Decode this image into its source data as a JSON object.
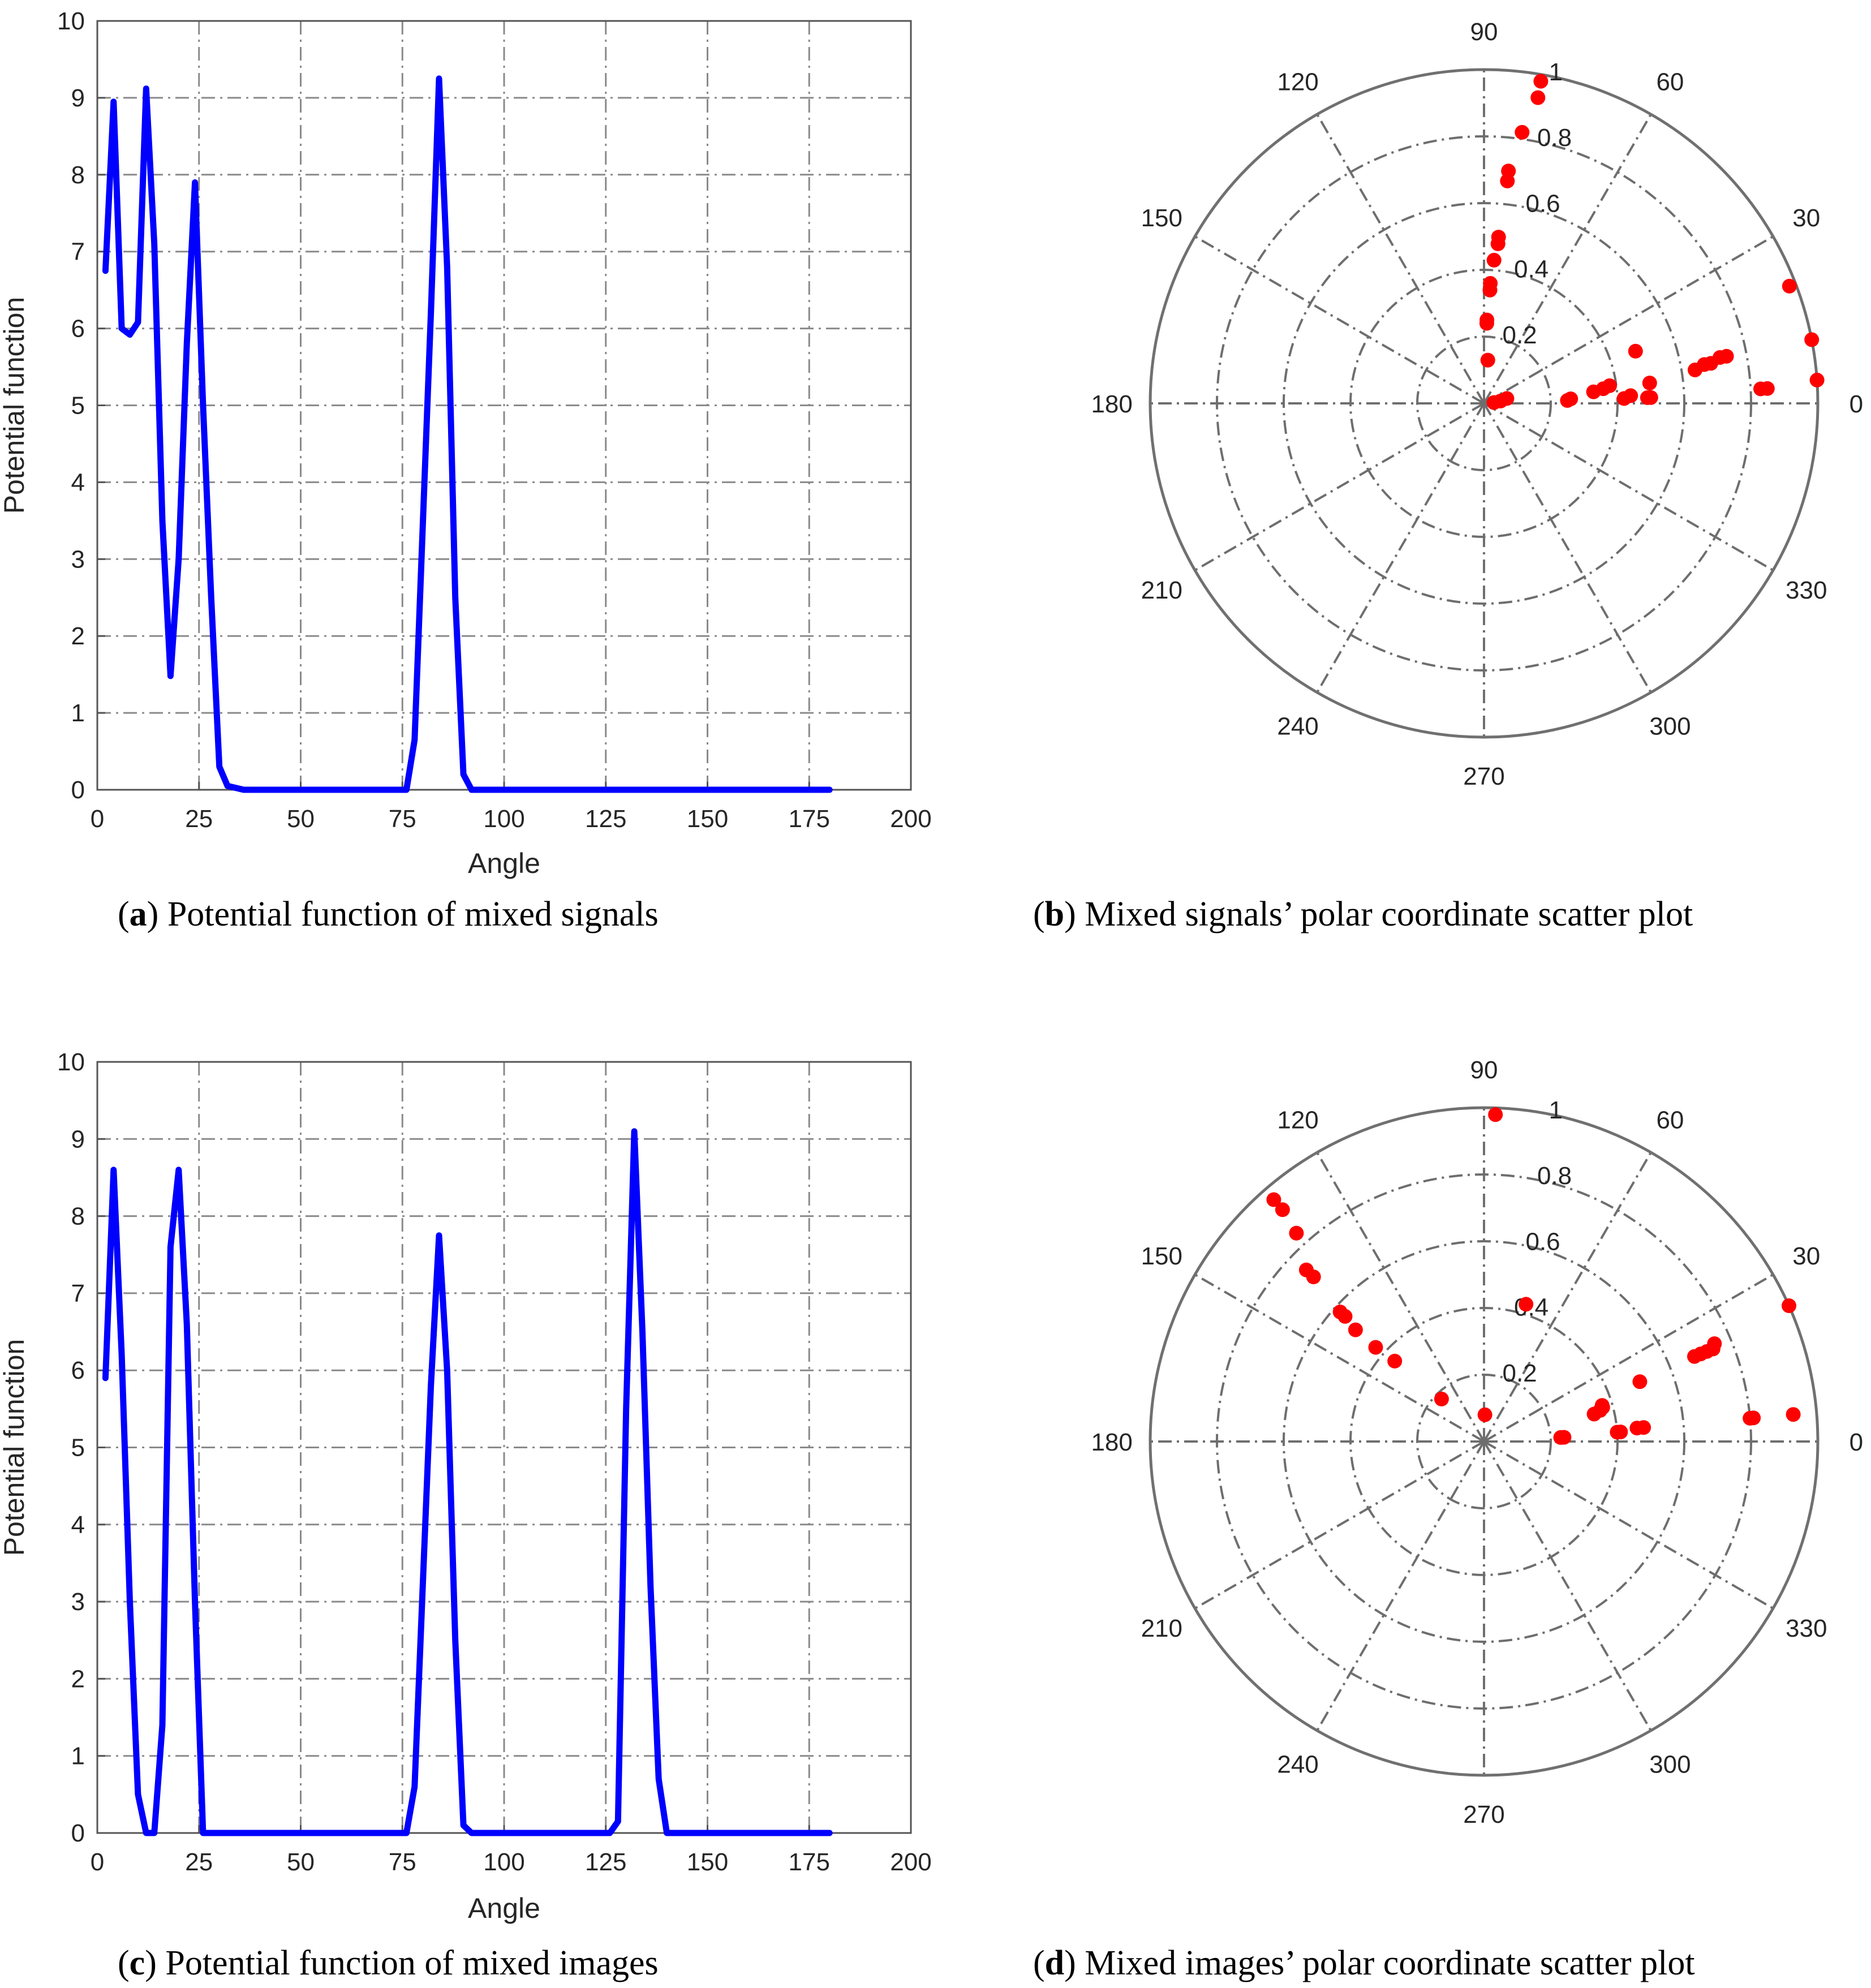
{
  "chart_data": [
    {
      "type": "line",
      "caption_id": "(a)",
      "caption_text": " Potential function of mixed signals",
      "xlabel": "Angle",
      "ylabel": "Potential function",
      "xlim": [
        0,
        200
      ],
      "ylim": [
        0,
        10
      ],
      "xticks": [
        0,
        25,
        50,
        75,
        100,
        125,
        150,
        175,
        200
      ],
      "yticks": [
        0,
        1,
        2,
        3,
        4,
        5,
        6,
        7,
        8,
        9,
        10
      ],
      "grid": true,
      "line_color": "#0000ff",
      "series": [
        {
          "name": "potential",
          "x": [
            2,
            4,
            6,
            8,
            10,
            12,
            14,
            16,
            18,
            20,
            22,
            24,
            26,
            28,
            30,
            32,
            36,
            76,
            78,
            82,
            84,
            86,
            88,
            90,
            92,
            180
          ],
          "y": [
            6.75,
            8.95,
            6.0,
            5.92,
            6.08,
            9.12,
            7.1,
            3.5,
            1.48,
            3.0,
            5.8,
            7.9,
            5.0,
            2.5,
            0.3,
            0.05,
            0.0,
            0.0,
            0.65,
            6.2,
            9.25,
            6.8,
            2.5,
            0.2,
            0.0,
            0.0
          ]
        }
      ]
    },
    {
      "type": "scatter",
      "subtype": "polar",
      "caption_id": "(b)",
      "caption_text": " Mixed signals’ polar coordinate scatter plot",
      "theta_ticks": [
        0,
        30,
        60,
        90,
        120,
        150,
        180,
        210,
        240,
        270,
        300,
        330
      ],
      "r_ticks": [
        0.2,
        0.4,
        0.6,
        0.8,
        1
      ],
      "rlim": [
        0,
        1
      ],
      "marker_color": "#ff0000",
      "points": [
        {
          "theta": 80,
          "r": 0.98
        },
        {
          "theta": 80,
          "r": 0.93
        },
        {
          "theta": 82,
          "r": 0.82
        },
        {
          "theta": 84,
          "r": 0.7
        },
        {
          "theta": 84,
          "r": 0.67
        },
        {
          "theta": 85,
          "r": 0.5
        },
        {
          "theta": 85,
          "r": 0.48
        },
        {
          "theta": 86,
          "r": 0.43
        },
        {
          "theta": 87,
          "r": 0.36
        },
        {
          "theta": 87,
          "r": 0.34
        },
        {
          "theta": 88,
          "r": 0.25
        },
        {
          "theta": 88,
          "r": 0.24
        },
        {
          "theta": 85,
          "r": 0.13
        },
        {
          "theta": 5,
          "r": 0.03
        },
        {
          "theta": 8,
          "r": 0.05
        },
        {
          "theta": 12,
          "r": 0.07
        },
        {
          "theta": 2,
          "r": 0.25
        },
        {
          "theta": 3,
          "r": 0.26
        },
        {
          "theta": 6,
          "r": 0.33
        },
        {
          "theta": 7,
          "r": 0.36
        },
        {
          "theta": 8,
          "r": 0.38
        },
        {
          "theta": 2,
          "r": 0.42
        },
        {
          "theta": 3,
          "r": 0.44
        },
        {
          "theta": 2,
          "r": 0.49
        },
        {
          "theta": 2,
          "r": 0.5
        },
        {
          "theta": 7,
          "r": 0.5
        },
        {
          "theta": 19,
          "r": 0.48
        },
        {
          "theta": 3,
          "r": 0.83
        },
        {
          "theta": 3,
          "r": 0.85
        },
        {
          "theta": 9,
          "r": 0.64
        },
        {
          "theta": 10,
          "r": 0.67
        },
        {
          "theta": 10,
          "r": 0.69
        },
        {
          "theta": 11,
          "r": 0.72
        },
        {
          "theta": 11,
          "r": 0.74
        },
        {
          "theta": 4,
          "r": 1.0
        },
        {
          "theta": 11,
          "r": 1.0
        },
        {
          "theta": 21,
          "r": 0.98
        }
      ]
    },
    {
      "type": "line",
      "caption_id": "(c)",
      "caption_text": " Potential function of mixed images",
      "xlabel": "Angle",
      "ylabel": "Potential function",
      "xlim": [
        0,
        200
      ],
      "ylim": [
        0,
        10
      ],
      "xticks": [
        0,
        25,
        50,
        75,
        100,
        125,
        150,
        175,
        200
      ],
      "yticks": [
        0,
        1,
        2,
        3,
        4,
        5,
        6,
        7,
        8,
        9,
        10
      ],
      "grid": true,
      "line_color": "#0000ff",
      "series": [
        {
          "name": "potential",
          "x": [
            2,
            4,
            6,
            8,
            10,
            12,
            14,
            16,
            18,
            20,
            22,
            24,
            26,
            28,
            76,
            78,
            82,
            84,
            86,
            88,
            90,
            92,
            126,
            128,
            130,
            132,
            134,
            136,
            138,
            140,
            180
          ],
          "y": [
            5.9,
            8.6,
            6.2,
            3.0,
            0.5,
            0.0,
            0.0,
            1.4,
            7.6,
            8.6,
            6.6,
            3.0,
            0.0,
            0.0,
            0.0,
            0.6,
            5.8,
            7.75,
            6.0,
            2.5,
            0.1,
            0.0,
            0.0,
            0.15,
            5.5,
            9.1,
            6.5,
            3.2,
            0.7,
            0.0,
            0.0
          ]
        }
      ]
    },
    {
      "type": "scatter",
      "subtype": "polar",
      "caption_id": "(d)",
      "caption_text": " Mixed images’ polar coordinate scatter plot",
      "theta_ticks": [
        0,
        30,
        60,
        90,
        120,
        150,
        180,
        210,
        240,
        270,
        300,
        330
      ],
      "r_ticks": [
        0.2,
        0.4,
        0.6,
        0.8,
        1
      ],
      "rlim": [
        0,
        1
      ],
      "marker_color": "#ff0000",
      "points": [
        {
          "theta": 88,
          "r": 0.98
        },
        {
          "theta": 131,
          "r": 0.96
        },
        {
          "theta": 131,
          "r": 0.92
        },
        {
          "theta": 132,
          "r": 0.84
        },
        {
          "theta": 136,
          "r": 0.74
        },
        {
          "theta": 136,
          "r": 0.71
        },
        {
          "theta": 138,
          "r": 0.58
        },
        {
          "theta": 138,
          "r": 0.56
        },
        {
          "theta": 139,
          "r": 0.51
        },
        {
          "theta": 139,
          "r": 0.43
        },
        {
          "theta": 138,
          "r": 0.36
        },
        {
          "theta": 135,
          "r": 0.18
        },
        {
          "theta": 88,
          "r": 0.08
        },
        {
          "theta": 73,
          "r": 0.43
        },
        {
          "theta": 3,
          "r": 0.23
        },
        {
          "theta": 3,
          "r": 0.24
        },
        {
          "theta": 14,
          "r": 0.34
        },
        {
          "theta": 15,
          "r": 0.36
        },
        {
          "theta": 16,
          "r": 0.37
        },
        {
          "theta": 17,
          "r": 0.37
        },
        {
          "theta": 4,
          "r": 0.4
        },
        {
          "theta": 4,
          "r": 0.41
        },
        {
          "theta": 5,
          "r": 0.46
        },
        {
          "theta": 5,
          "r": 0.48
        },
        {
          "theta": 21,
          "r": 0.5
        },
        {
          "theta": 22,
          "r": 0.68
        },
        {
          "theta": 22,
          "r": 0.7
        },
        {
          "theta": 22,
          "r": 0.72
        },
        {
          "theta": 22,
          "r": 0.74
        },
        {
          "theta": 23,
          "r": 0.75
        },
        {
          "theta": 5,
          "r": 0.8
        },
        {
          "theta": 5,
          "r": 0.81
        },
        {
          "theta": 5,
          "r": 0.93
        },
        {
          "theta": 24,
          "r": 1.0
        }
      ]
    }
  ]
}
